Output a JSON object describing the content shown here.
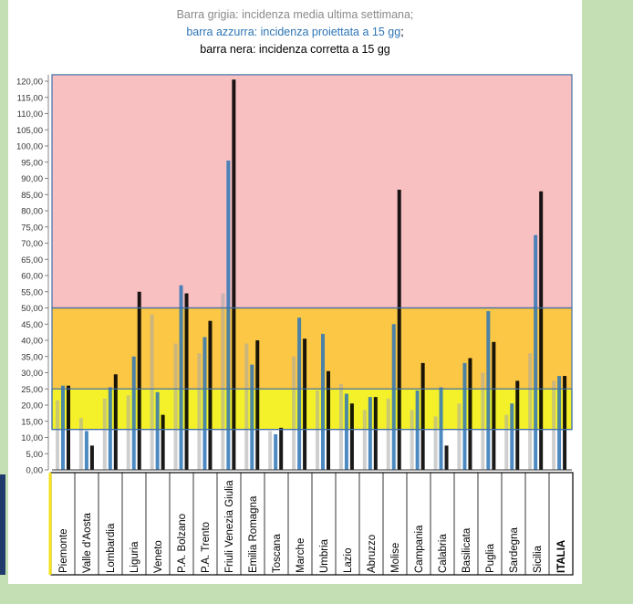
{
  "title": {
    "line1": "Barra grigia: incidenza media ultima settimana;",
    "line2": "barra azzurra: incidenza proiettata a 15 gg",
    "line2_sep": ";",
    "line3": "barra nera: incidenza corretta a 15 gg"
  },
  "colors": {
    "zone_red": "#f9c0c2",
    "zone_orange": "#fbc745",
    "zone_yellow": "#f4f12a",
    "grey_bar": "#a8a8a8",
    "blue_bar": "#2e75b6",
    "black_bar": "#000000"
  },
  "chart_data": {
    "type": "bar",
    "y_ticks": [
      "0,00",
      "5,00",
      "10,00",
      "15,00",
      "20,00",
      "25,00",
      "30,00",
      "35,00",
      "40,00",
      "45,00",
      "50,00",
      "55,00",
      "60,00",
      "65,00",
      "70,00",
      "75,00",
      "80,00",
      "85,00",
      "90,00",
      "95,00",
      "100,00",
      "105,00",
      "110,00",
      "115,00",
      "120,00"
    ],
    "ylim": [
      0,
      122
    ],
    "zones": [
      {
        "color": "red",
        "from": 50,
        "to": 122
      },
      {
        "color": "orange",
        "from": 12.5,
        "to": 50
      },
      {
        "color": "yellow",
        "from": 12.5,
        "to": 25
      }
    ],
    "categories": [
      "Piemonte",
      "Valle d'Aosta",
      "Lombardia",
      "Liguria",
      "Veneto",
      "P.A. Bolzano",
      "P.A. Trento",
      "Friuli Venezia Giulia",
      "Emilia Romagna",
      "Toscana",
      "Marche",
      "Umbria",
      "Lazio",
      "Abruzzo",
      "Molise",
      "Campania",
      "Calabria",
      "Basilicata",
      "Puglia",
      "Sardegna",
      "Sicilia",
      "ITALIA"
    ],
    "bold_categories": [
      "ITALIA"
    ],
    "series": [
      {
        "name": "incidenza media ultima settimana",
        "color": "grey",
        "values": [
          21.5,
          16,
          22,
          23,
          48,
          39,
          36,
          54.5,
          39,
          12,
          35,
          24.5,
          26.5,
          18.5,
          22,
          18.5,
          16.5,
          20.5,
          30,
          17,
          36,
          27.5
        ]
      },
      {
        "name": "incidenza proiettata a 15 gg",
        "color": "blue",
        "values": [
          26,
          12,
          25.5,
          35,
          24,
          57,
          41,
          95.5,
          32.5,
          11,
          47,
          42,
          23.5,
          22.5,
          45,
          24.5,
          25.5,
          33,
          49,
          20.5,
          72.5,
          29
        ]
      },
      {
        "name": "incidenza corretta a 15 gg",
        "color": "black",
        "values": [
          26,
          7.5,
          29.5,
          55,
          17,
          54.5,
          46,
          120.5,
          40,
          13,
          40.5,
          30.5,
          20.5,
          22.5,
          86.5,
          33,
          7.5,
          34.5,
          39.5,
          27.5,
          86,
          29
        ]
      }
    ]
  }
}
